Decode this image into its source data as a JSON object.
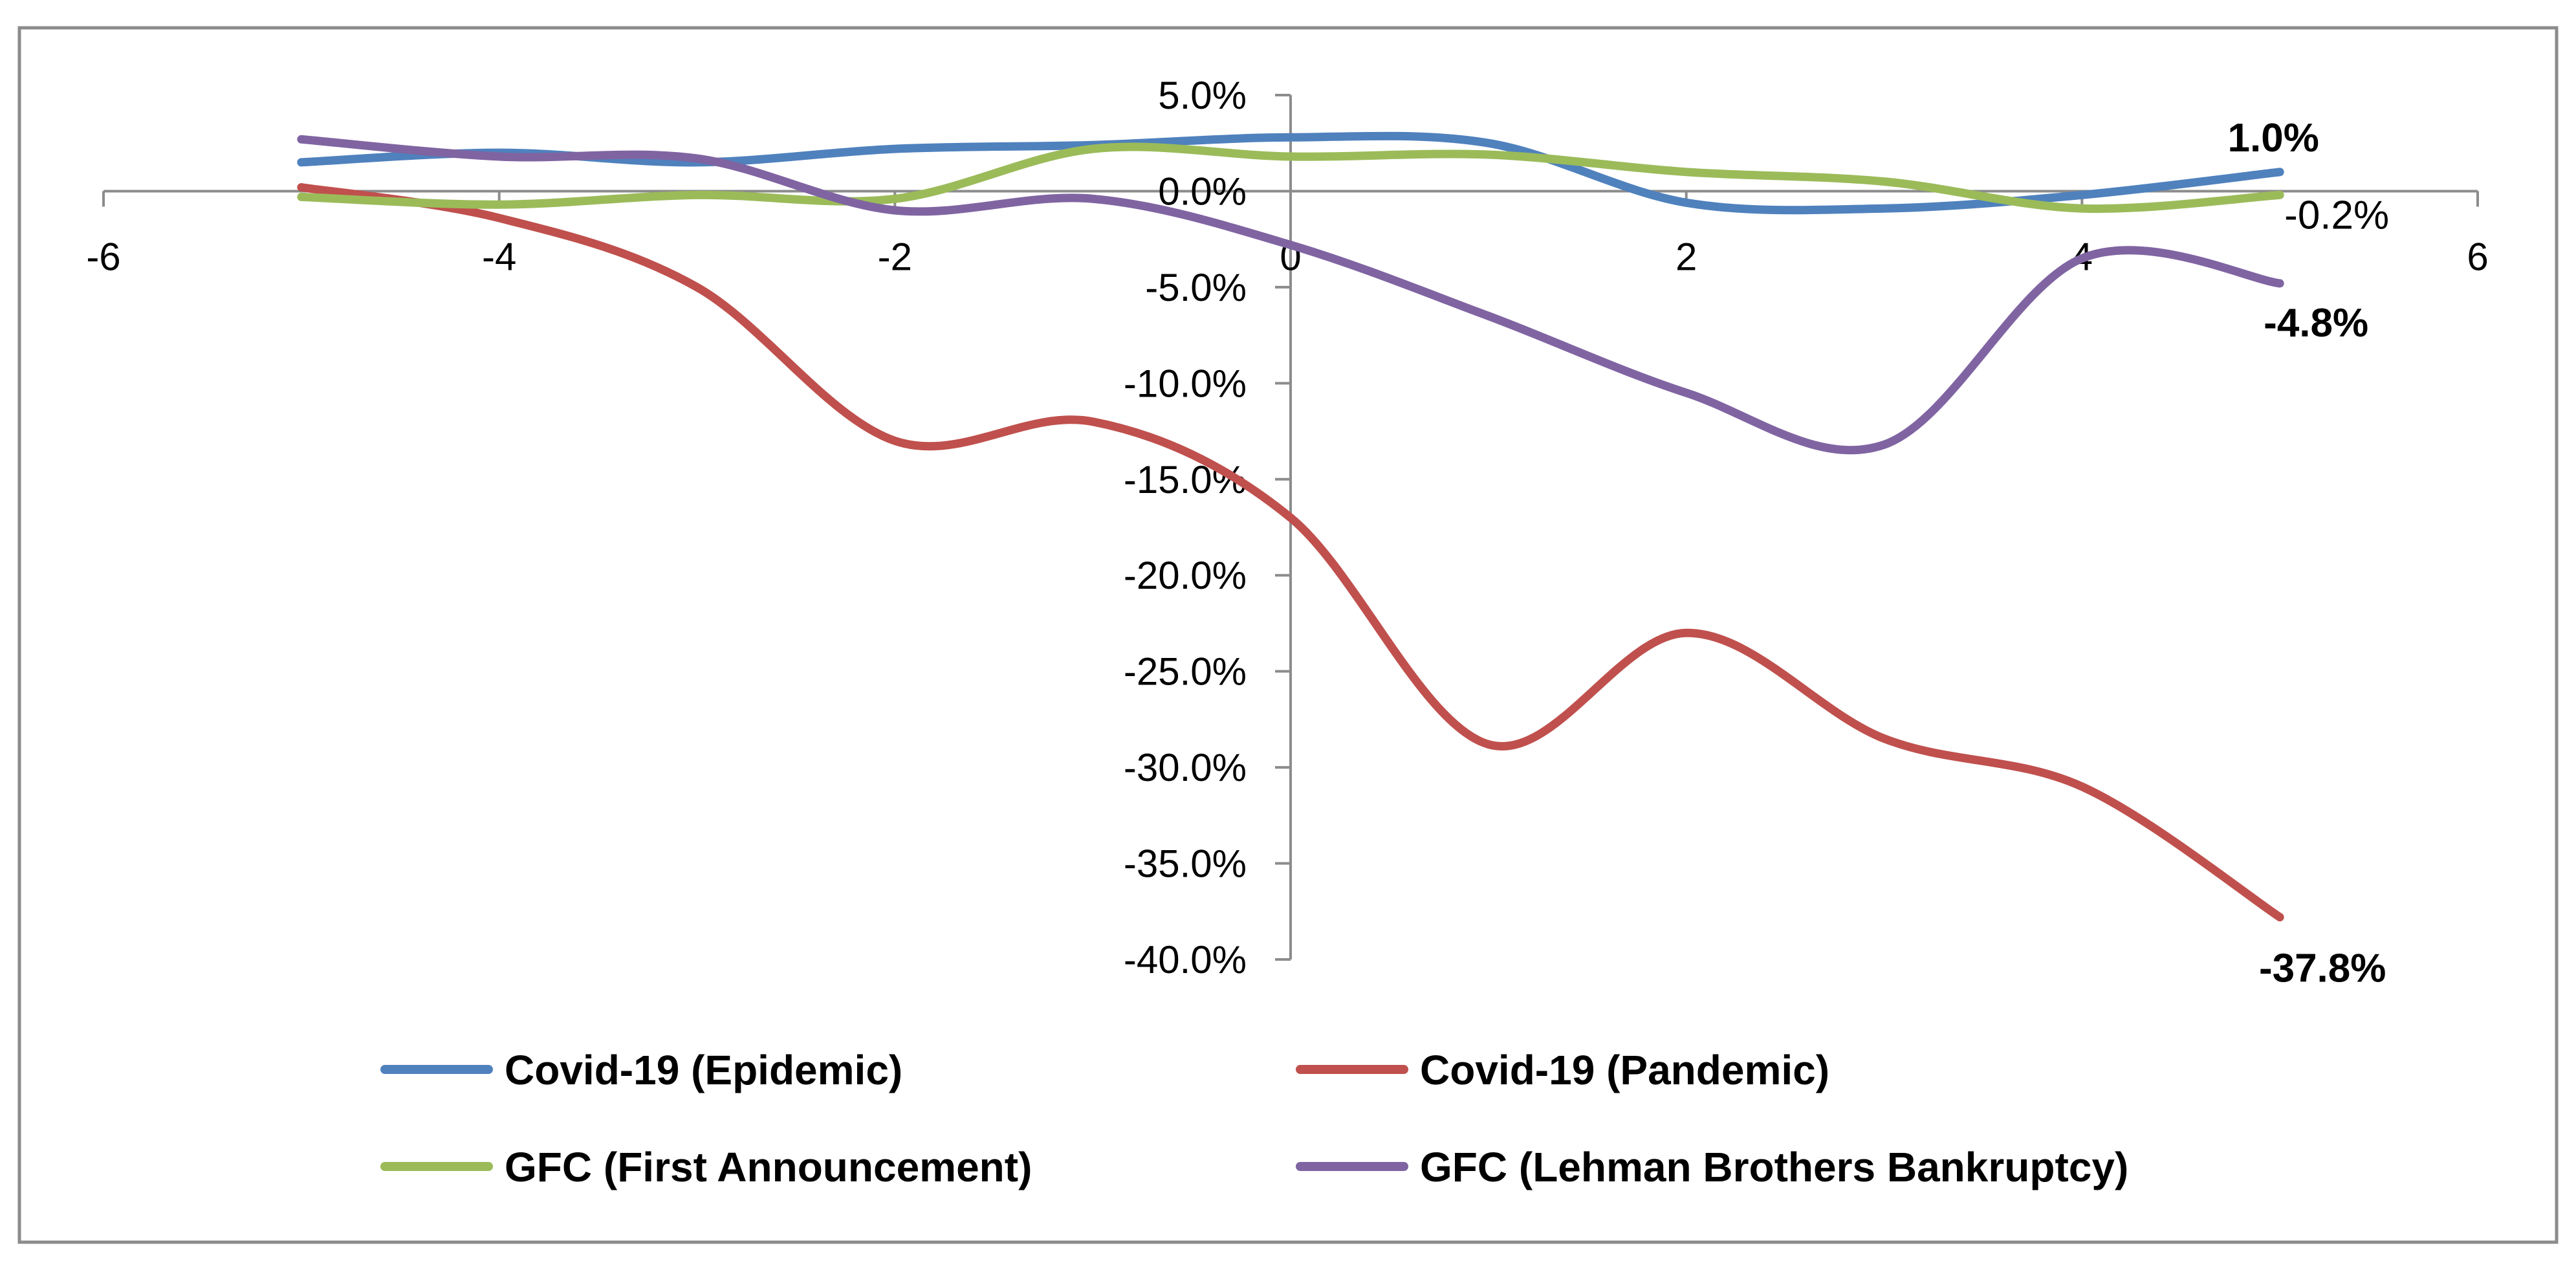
{
  "chart_data": {
    "type": "line",
    "title": "",
    "xlabel": "",
    "ylabel": "",
    "xlim": [
      -6,
      6
    ],
    "ylim": [
      -40,
      5
    ],
    "x_ticks": [
      -6,
      -4,
      -2,
      0,
      2,
      4,
      6
    ],
    "x_tick_labels": [
      "-6",
      "-4",
      "-2",
      "0",
      "2",
      "4",
      "6"
    ],
    "y_ticks": [
      5,
      0,
      -5,
      -10,
      -15,
      -20,
      -25,
      -30,
      -35,
      -40
    ],
    "y_tick_labels": [
      "5.0%",
      "0.0%",
      "-5.0%",
      "-10.0%",
      "-15.0%",
      "-20.0%",
      "-25.0%",
      "-30.0%",
      "-35.0%",
      "-40.0%"
    ],
    "grid": false,
    "legend_position": "bottom",
    "x": [
      -5,
      -4,
      -3,
      -2,
      -1,
      0,
      1,
      2,
      3,
      4,
      5
    ],
    "series": [
      {
        "name": "Covid-19 (Epidemic)",
        "color": "#4f81bd",
        "values": [
          1.5,
          2.0,
          1.5,
          2.2,
          2.4,
          2.8,
          2.5,
          -0.6,
          -0.9,
          -0.2,
          1.0
        ],
        "end_label": "1.0%",
        "end_label_bold": true
      },
      {
        "name": "Covid-19 (Pandemic)",
        "color": "#c0504d",
        "values": [
          0.2,
          -1.4,
          -5.0,
          -13.0,
          -12.0,
          -17.0,
          -28.8,
          -23.0,
          -28.5,
          -31.0,
          -37.8
        ],
        "end_label": "-37.8%",
        "end_label_bold": true
      },
      {
        "name": "GFC (First Announcement)",
        "color": "#9bbb59",
        "values": [
          -0.3,
          -0.7,
          -0.2,
          -0.4,
          2.2,
          1.8,
          1.9,
          1.0,
          0.5,
          -0.9,
          -0.2
        ],
        "end_label": "-0.2%",
        "end_label_bold": false
      },
      {
        "name": "GFC (Lehman Brothers Bankruptcy)",
        "color": "#8064a2",
        "values": [
          2.7,
          1.8,
          1.7,
          -1.0,
          -0.4,
          -2.8,
          -6.5,
          -10.5,
          -13.2,
          -3.5,
          -4.8
        ],
        "end_label": "-4.8%",
        "end_label_bold": true
      }
    ]
  }
}
